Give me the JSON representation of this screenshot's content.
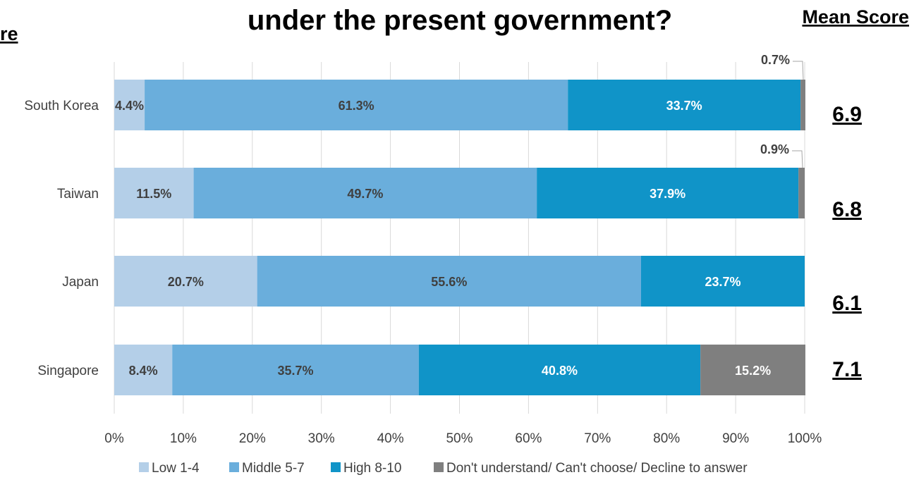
{
  "chart_data": {
    "type": "bar",
    "orientation": "horizontal",
    "stacked": "percent",
    "title": "under the present government?",
    "side_header_left": "re",
    "mean_header": "Mean Score",
    "categories": [
      "South Korea",
      "Taiwan",
      "Japan",
      "Singapore"
    ],
    "series": [
      {
        "name": "Low 1-4",
        "color": "#b4cfe8",
        "values": [
          4.4,
          11.5,
          20.7,
          8.4
        ]
      },
      {
        "name": "Middle 5-7",
        "color": "#6aaedc",
        "values": [
          61.3,
          49.7,
          55.6,
          35.7
        ]
      },
      {
        "name": "High 8-10",
        "color": "#1094c8",
        "values": [
          33.7,
          37.9,
          23.7,
          40.8
        ]
      },
      {
        "name": "Don't understand/ Can't choose/ Decline to answer",
        "color": "#7f7f7f",
        "values": [
          0.7,
          0.9,
          null,
          15.2
        ]
      }
    ],
    "labels": [
      [
        "4.4%",
        "61.3%",
        "33.7%",
        "0.7%"
      ],
      [
        "11.5%",
        "49.7%",
        "37.9%",
        "0.9%"
      ],
      [
        "20.7%",
        "55.6%",
        "23.7%",
        ""
      ],
      [
        "8.4%",
        "35.7%",
        "40.8%",
        "15.2%"
      ]
    ],
    "label_colors": [
      "#404040",
      "#404040",
      "#ffffff",
      "#ffffff"
    ],
    "mean_scores": [
      "6.9",
      "6.8",
      "6.1",
      "7.1"
    ],
    "xlim": [
      0,
      100
    ],
    "xticks": [
      "0%",
      "10%",
      "20%",
      "30%",
      "40%",
      "50%",
      "60%",
      "70%",
      "80%",
      "90%",
      "100%"
    ],
    "grid": true,
    "legend_position": "bottom"
  }
}
